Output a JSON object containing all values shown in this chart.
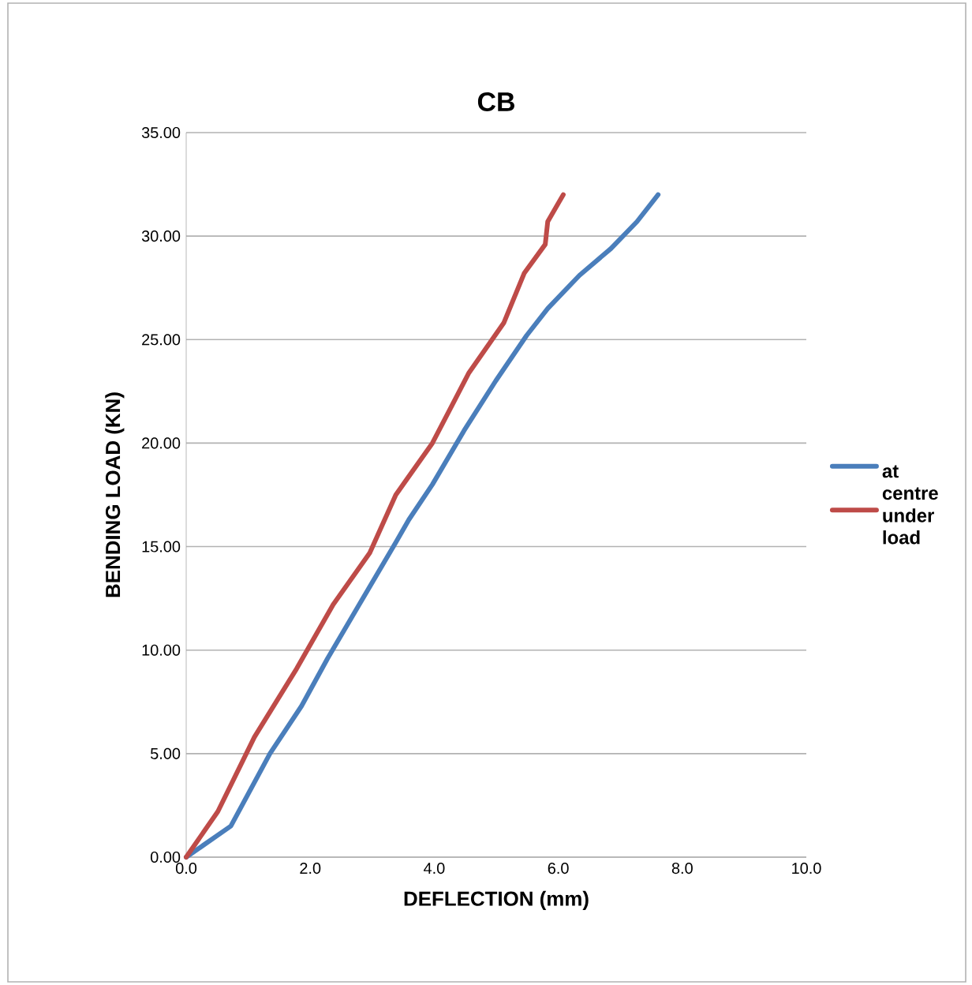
{
  "chart_data": {
    "type": "line",
    "title": "CB",
    "xlabel": "DEFLECTION (mm)",
    "ylabel": "BENDING LOAD (KN)",
    "xlim": [
      0,
      10
    ],
    "ylim": [
      0,
      35
    ],
    "xticks": [
      {
        "value": 0,
        "label": "0.0"
      },
      {
        "value": 2,
        "label": "2.0"
      },
      {
        "value": 4,
        "label": "4.0"
      },
      {
        "value": 6,
        "label": "6.0"
      },
      {
        "value": 8,
        "label": "8.0"
      },
      {
        "value": 10,
        "label": "10.0"
      }
    ],
    "yticks": [
      {
        "value": 0,
        "label": "0.00"
      },
      {
        "value": 5,
        "label": "5.00"
      },
      {
        "value": 10,
        "label": "10.00"
      },
      {
        "value": 15,
        "label": "15.00"
      },
      {
        "value": 20,
        "label": "20.00"
      },
      {
        "value": 25,
        "label": "25.00"
      },
      {
        "value": 30,
        "label": "30.00"
      },
      {
        "value": 35,
        "label": "35.00"
      }
    ],
    "grid": "y",
    "legend": "right",
    "marker": "none",
    "line_style": "solid",
    "series": [
      {
        "name": "at centre",
        "color": "#4a7ebb",
        "x": [
          0,
          0.72,
          1.35,
          1.86,
          2.28,
          2.79,
          3.38,
          3.59,
          3.97,
          4.48,
          4.99,
          5.49,
          5.83,
          6.34,
          6.85,
          7.27,
          7.61
        ],
        "values": [
          0,
          1.5,
          5.0,
          7.3,
          9.6,
          12.2,
          15.2,
          16.3,
          18.0,
          20.6,
          23.0,
          25.2,
          26.5,
          28.1,
          29.4,
          30.7,
          32.0
        ]
      },
      {
        "name": "under load",
        "color": "#be4b48",
        "x": [
          0,
          0.51,
          1.1,
          1.78,
          2.37,
          2.96,
          3.38,
          3.97,
          4.56,
          5.12,
          5.45,
          5.79,
          5.83,
          6.08
        ],
        "values": [
          0,
          2.2,
          5.8,
          9.1,
          12.2,
          14.7,
          17.5,
          20.0,
          23.4,
          25.8,
          28.2,
          29.6,
          30.7,
          32.0
        ]
      }
    ]
  }
}
